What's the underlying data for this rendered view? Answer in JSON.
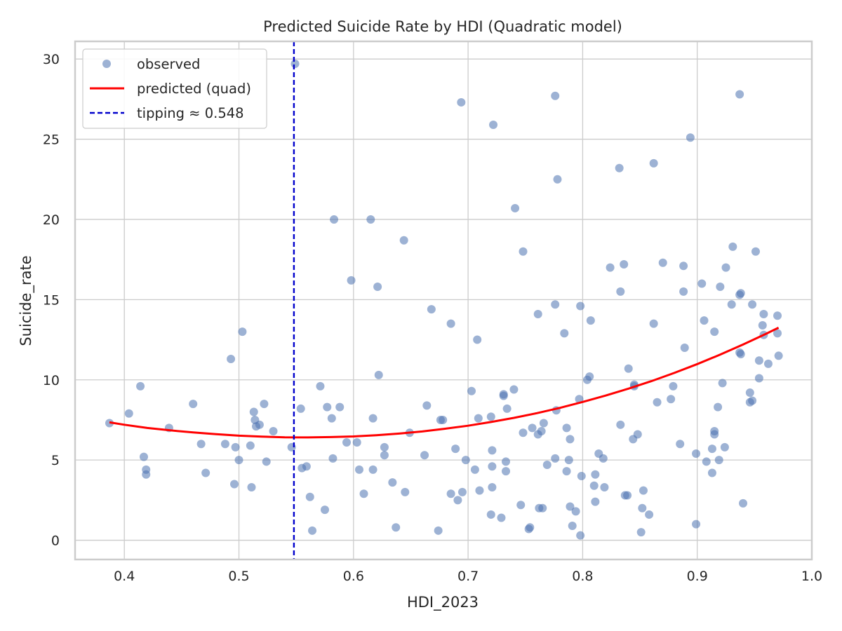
{
  "chart_data": {
    "type": "scatter",
    "title": "Predicted Suicide Rate by HDI (Quadratic model)",
    "xlabel": "HDI_2023",
    "ylabel": "Suicide_rate",
    "xlim": [
      0.357,
      1.0
    ],
    "ylim": [
      -1.2,
      31.1
    ],
    "xticks": [
      "0.4",
      "0.5",
      "0.6",
      "0.7",
      "0.8",
      "0.9",
      "1.0"
    ],
    "yticks": [
      "0",
      "5",
      "10",
      "15",
      "20",
      "25",
      "30"
    ],
    "grid": true,
    "legend_position": "top-left",
    "colors": {
      "observed": "#4c72b0",
      "predicted": "#ff0000",
      "tipping": "#0000cc",
      "grid": "#cccccc",
      "spine": "#cccccc"
    },
    "series": [
      {
        "name": "observed",
        "kind": "scatter",
        "points": [
          [
            0.387,
            7.3
          ],
          [
            0.404,
            7.9
          ],
          [
            0.414,
            9.6
          ],
          [
            0.417,
            5.2
          ],
          [
            0.419,
            4.4
          ],
          [
            0.419,
            4.1
          ],
          [
            0.439,
            7.0
          ],
          [
            0.46,
            8.5
          ],
          [
            0.467,
            6.0
          ],
          [
            0.471,
            4.2
          ],
          [
            0.488,
            6.0
          ],
          [
            0.493,
            11.3
          ],
          [
            0.496,
            3.5
          ],
          [
            0.497,
            5.8
          ],
          [
            0.5,
            5.0
          ],
          [
            0.503,
            13.0
          ],
          [
            0.51,
            5.9
          ],
          [
            0.511,
            3.3
          ],
          [
            0.513,
            8.0
          ],
          [
            0.514,
            7.5
          ],
          [
            0.515,
            7.1
          ],
          [
            0.518,
            7.2
          ],
          [
            0.522,
            8.5
          ],
          [
            0.524,
            4.9
          ],
          [
            0.53,
            6.8
          ],
          [
            0.546,
            5.8
          ],
          [
            0.549,
            29.7
          ],
          [
            0.554,
            8.2
          ],
          [
            0.555,
            4.5
          ],
          [
            0.559,
            4.6
          ],
          [
            0.562,
            2.7
          ],
          [
            0.564,
            0.6
          ],
          [
            0.571,
            9.6
          ],
          [
            0.575,
            1.9
          ],
          [
            0.577,
            8.3
          ],
          [
            0.581,
            7.6
          ],
          [
            0.582,
            5.1
          ],
          [
            0.583,
            20.0
          ],
          [
            0.588,
            8.3
          ],
          [
            0.594,
            6.1
          ],
          [
            0.598,
            16.2
          ],
          [
            0.603,
            6.1
          ],
          [
            0.605,
            4.4
          ],
          [
            0.609,
            2.9
          ],
          [
            0.615,
            20.0
          ],
          [
            0.617,
            7.6
          ],
          [
            0.617,
            4.4
          ],
          [
            0.621,
            15.8
          ],
          [
            0.622,
            10.3
          ],
          [
            0.627,
            5.8
          ],
          [
            0.627,
            5.3
          ],
          [
            0.634,
            3.6
          ],
          [
            0.637,
            0.8
          ],
          [
            0.644,
            18.7
          ],
          [
            0.645,
            3.0
          ],
          [
            0.649,
            6.7
          ],
          [
            0.662,
            5.3
          ],
          [
            0.664,
            8.4
          ],
          [
            0.668,
            14.4
          ],
          [
            0.674,
            0.6
          ],
          [
            0.676,
            7.5
          ],
          [
            0.678,
            7.5
          ],
          [
            0.685,
            13.5
          ],
          [
            0.685,
            2.9
          ],
          [
            0.689,
            5.7
          ],
          [
            0.691,
            2.5
          ],
          [
            0.694,
            27.3
          ],
          [
            0.695,
            3.0
          ],
          [
            0.698,
            5.0
          ],
          [
            0.703,
            9.3
          ],
          [
            0.706,
            4.4
          ],
          [
            0.708,
            12.5
          ],
          [
            0.709,
            7.6
          ],
          [
            0.71,
            3.1
          ],
          [
            0.72,
            7.7
          ],
          [
            0.72,
            1.6
          ],
          [
            0.721,
            3.3
          ],
          [
            0.721,
            4.6
          ],
          [
            0.721,
            5.6
          ],
          [
            0.722,
            25.9
          ],
          [
            0.729,
            1.4
          ],
          [
            0.731,
            9.0
          ],
          [
            0.731,
            9.1
          ],
          [
            0.733,
            4.9
          ],
          [
            0.733,
            4.3
          ],
          [
            0.734,
            8.2
          ],
          [
            0.74,
            9.4
          ],
          [
            0.741,
            20.7
          ],
          [
            0.746,
            2.2
          ],
          [
            0.748,
            18.0
          ],
          [
            0.748,
            6.7
          ],
          [
            0.753,
            0.7
          ],
          [
            0.754,
            0.8
          ],
          [
            0.756,
            7.0
          ],
          [
            0.761,
            14.1
          ],
          [
            0.761,
            6.6
          ],
          [
            0.762,
            2.0
          ],
          [
            0.764,
            6.8
          ],
          [
            0.765,
            2.0
          ],
          [
            0.766,
            7.3
          ],
          [
            0.769,
            4.7
          ],
          [
            0.776,
            27.7
          ],
          [
            0.776,
            14.7
          ],
          [
            0.776,
            5.1
          ],
          [
            0.777,
            8.1
          ],
          [
            0.778,
            22.5
          ],
          [
            0.784,
            12.9
          ],
          [
            0.786,
            7.0
          ],
          [
            0.786,
            4.3
          ],
          [
            0.788,
            5.0
          ],
          [
            0.789,
            6.3
          ],
          [
            0.789,
            2.1
          ],
          [
            0.791,
            0.9
          ],
          [
            0.794,
            1.8
          ],
          [
            0.797,
            8.8
          ],
          [
            0.798,
            14.6
          ],
          [
            0.798,
            0.3
          ],
          [
            0.799,
            4.0
          ],
          [
            0.804,
            10.0
          ],
          [
            0.806,
            10.2
          ],
          [
            0.807,
            13.7
          ],
          [
            0.81,
            3.4
          ],
          [
            0.811,
            2.4
          ],
          [
            0.811,
            4.1
          ],
          [
            0.814,
            5.4
          ],
          [
            0.818,
            5.1
          ],
          [
            0.819,
            3.3
          ],
          [
            0.824,
            17.0
          ],
          [
            0.832,
            23.2
          ],
          [
            0.833,
            15.5
          ],
          [
            0.833,
            7.2
          ],
          [
            0.836,
            17.2
          ],
          [
            0.837,
            2.8
          ],
          [
            0.839,
            2.8
          ],
          [
            0.84,
            10.7
          ],
          [
            0.844,
            6.3
          ],
          [
            0.845,
            9.7
          ],
          [
            0.845,
            9.6
          ],
          [
            0.848,
            6.6
          ],
          [
            0.851,
            0.5
          ],
          [
            0.852,
            2.0
          ],
          [
            0.853,
            3.1
          ],
          [
            0.858,
            1.6
          ],
          [
            0.862,
            13.5
          ],
          [
            0.862,
            23.5
          ],
          [
            0.865,
            8.6
          ],
          [
            0.87,
            17.3
          ],
          [
            0.877,
            8.8
          ],
          [
            0.879,
            9.6
          ],
          [
            0.885,
            6.0
          ],
          [
            0.888,
            17.1
          ],
          [
            0.888,
            15.5
          ],
          [
            0.889,
            12.0
          ],
          [
            0.894,
            25.1
          ],
          [
            0.899,
            5.4
          ],
          [
            0.899,
            1.0
          ],
          [
            0.904,
            16.0
          ],
          [
            0.906,
            13.7
          ],
          [
            0.908,
            4.9
          ],
          [
            0.913,
            5.7
          ],
          [
            0.913,
            4.2
          ],
          [
            0.915,
            13.0
          ],
          [
            0.915,
            6.8
          ],
          [
            0.915,
            6.6
          ],
          [
            0.918,
            8.3
          ],
          [
            0.919,
            5.0
          ],
          [
            0.92,
            15.8
          ],
          [
            0.922,
            9.8
          ],
          [
            0.924,
            5.8
          ],
          [
            0.925,
            17.0
          ],
          [
            0.93,
            14.7
          ],
          [
            0.931,
            18.3
          ],
          [
            0.937,
            15.3
          ],
          [
            0.937,
            11.7
          ],
          [
            0.937,
            27.8
          ],
          [
            0.938,
            11.6
          ],
          [
            0.938,
            15.4
          ],
          [
            0.94,
            2.3
          ],
          [
            0.946,
            8.6
          ],
          [
            0.946,
            9.2
          ],
          [
            0.948,
            14.7
          ],
          [
            0.948,
            8.7
          ],
          [
            0.951,
            18.0
          ],
          [
            0.954,
            11.2
          ],
          [
            0.954,
            10.1
          ],
          [
            0.957,
            13.4
          ],
          [
            0.958,
            12.8
          ],
          [
            0.958,
            14.1
          ],
          [
            0.962,
            11.0
          ],
          [
            0.97,
            14.0
          ],
          [
            0.97,
            12.9
          ],
          [
            0.971,
            11.5
          ]
        ]
      },
      {
        "name": "predicted (quad)",
        "kind": "line",
        "curve": [
          [
            0.387,
            7.35
          ],
          [
            0.4,
            7.2
          ],
          [
            0.42,
            7.0
          ],
          [
            0.44,
            6.85
          ],
          [
            0.46,
            6.72
          ],
          [
            0.48,
            6.61
          ],
          [
            0.5,
            6.52
          ],
          [
            0.52,
            6.46
          ],
          [
            0.54,
            6.42
          ],
          [
            0.56,
            6.41
          ],
          [
            0.58,
            6.43
          ],
          [
            0.6,
            6.47
          ],
          [
            0.62,
            6.55
          ],
          [
            0.64,
            6.65
          ],
          [
            0.66,
            6.78
          ],
          [
            0.68,
            6.95
          ],
          [
            0.7,
            7.14
          ],
          [
            0.72,
            7.37
          ],
          [
            0.74,
            7.63
          ],
          [
            0.76,
            7.92
          ],
          [
            0.78,
            8.25
          ],
          [
            0.8,
            8.62
          ],
          [
            0.82,
            9.02
          ],
          [
            0.84,
            9.45
          ],
          [
            0.86,
            9.92
          ],
          [
            0.88,
            10.43
          ],
          [
            0.9,
            10.98
          ],
          [
            0.92,
            11.57
          ],
          [
            0.94,
            12.2
          ],
          [
            0.96,
            12.87
          ],
          [
            0.971,
            13.25
          ]
        ]
      },
      {
        "name": "tipping ≈ 0.548",
        "kind": "vline",
        "x": 0.548
      }
    ]
  }
}
